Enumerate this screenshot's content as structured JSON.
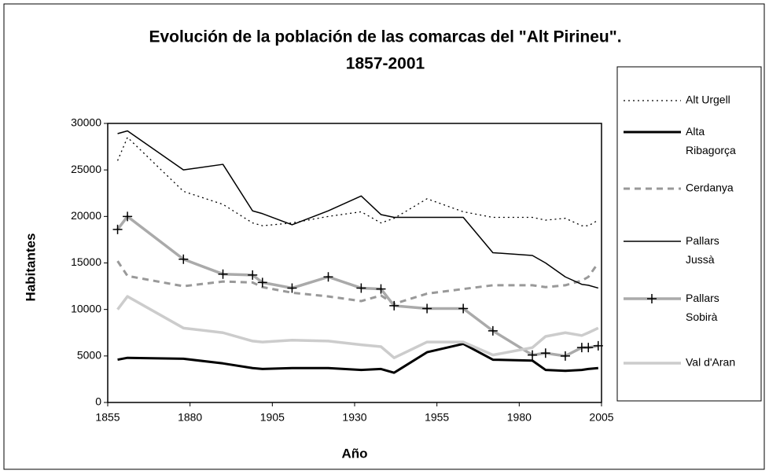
{
  "chart_data": {
    "type": "line",
    "title": "Evolución de la población de las comarcas del \"Alt Pirineu\".",
    "subtitle": "1857-2001",
    "x_label": "Año",
    "y_label": "Habitantes",
    "x": [
      1858,
      1861,
      1878,
      1890,
      1899,
      1902,
      1911,
      1922,
      1932,
      1938,
      1942,
      1952,
      1963,
      1972,
      1984,
      1988,
      1994,
      1999,
      2001,
      2004
    ],
    "xlim": [
      1855,
      2005
    ],
    "xticks": [
      1855,
      1880,
      1905,
      1930,
      1955,
      1980,
      2005
    ],
    "ylim": [
      0,
      30000
    ],
    "yticks": [
      0,
      5000,
      10000,
      15000,
      20000,
      25000,
      30000
    ],
    "legend": "right",
    "series": [
      {
        "name": "Alt Urgell",
        "color": "#000000",
        "width": 1.3,
        "dash": "2 4",
        "values": [
          26000,
          28500,
          22700,
          21300,
          19300,
          19000,
          19300,
          20000,
          20500,
          19300,
          19800,
          21900,
          20500,
          19900,
          19900,
          19600,
          19800,
          19000,
          19000,
          19600
        ]
      },
      {
        "name": "Alta Ribagorça",
        "color": "#000000",
        "width": 3,
        "values": [
          4600,
          4800,
          4700,
          4200,
          3700,
          3600,
          3700,
          3700,
          3500,
          3600,
          3200,
          5400,
          6300,
          4600,
          4500,
          3500,
          3400,
          3500,
          3600,
          3700
        ]
      },
      {
        "name": "Cerdanya",
        "color": "#999999",
        "width": 3,
        "dash": "8 6",
        "values": [
          15200,
          13600,
          12500,
          13000,
          12900,
          12400,
          11800,
          11400,
          10900,
          11500,
          10600,
          11700,
          12200,
          12600,
          12600,
          12400,
          12600,
          13100,
          13500,
          15000
        ]
      },
      {
        "name": "Pallars Jussà",
        "color": "#000000",
        "width": 1.5,
        "values": [
          28900,
          29200,
          25000,
          25600,
          20600,
          20300,
          19100,
          20600,
          22200,
          20200,
          19900,
          19900,
          19900,
          16100,
          15800,
          15000,
          13500,
          12700,
          12600,
          12300
        ]
      },
      {
        "name": "Pallars Sobirà",
        "color": "#aaaaaa",
        "width": 3.5,
        "marker": "plus",
        "values": [
          18600,
          20000,
          15400,
          13800,
          13700,
          12900,
          12300,
          13500,
          12300,
          12200,
          10400,
          10100,
          10100,
          7700,
          5100,
          5300,
          5000,
          5900,
          5900,
          6100
        ]
      },
      {
        "name": "Val d'Aran",
        "color": "#cccccc",
        "width": 3.5,
        "values": [
          10000,
          11400,
          8000,
          7500,
          6600,
          6500,
          6700,
          6600,
          6200,
          6000,
          4800,
          6500,
          6500,
          5100,
          5900,
          7100,
          7500,
          7200,
          7500,
          8000
        ]
      }
    ]
  }
}
